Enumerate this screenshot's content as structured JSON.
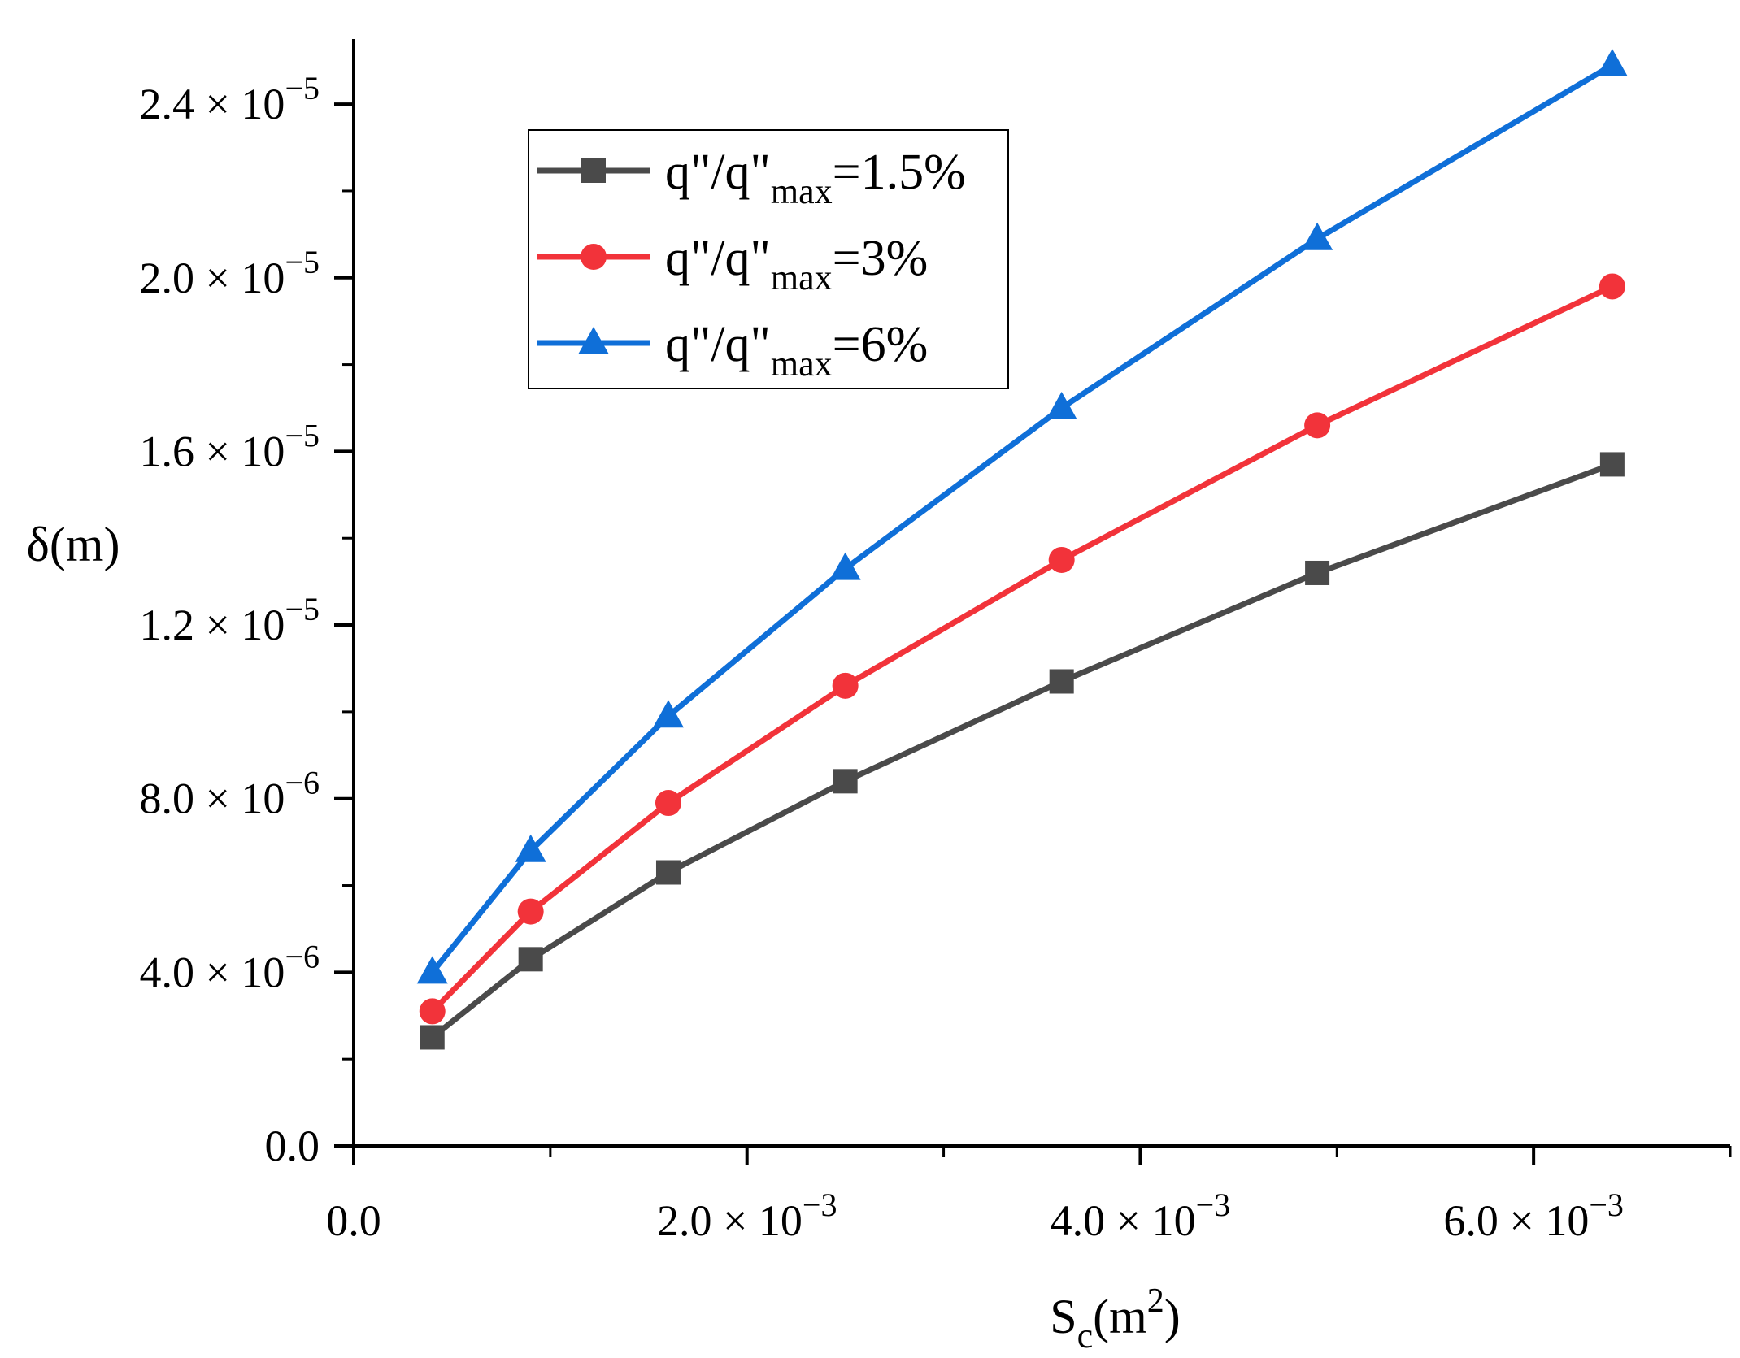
{
  "chart_data": {
    "type": "line",
    "title": "",
    "xlabel": {
      "base": "S",
      "sub": "c",
      "unit_open": "(m",
      "sup": "2",
      "unit_close": ")"
    },
    "ylabel": "δ(m)",
    "xlim": [
      0,
      0.007
    ],
    "ylim": [
      0,
      2.55e-05
    ],
    "x_ticks": [
      {
        "value": 0,
        "mantissa": "0.0",
        "exponent": ""
      },
      {
        "value": 0.002,
        "mantissa": "2.0 × 10",
        "exponent": "−3"
      },
      {
        "value": 0.004,
        "mantissa": "4.0 × 10",
        "exponent": "−3"
      },
      {
        "value": 0.006,
        "mantissa": "6.0 × 10",
        "exponent": "−3"
      }
    ],
    "x_minor_ticks": [
      0.001,
      0.003,
      0.005,
      0.007
    ],
    "y_ticks": [
      {
        "value": 0,
        "mantissa": "0.0",
        "exponent": ""
      },
      {
        "value": 4e-06,
        "mantissa": "4.0 × 10",
        "exponent": "−6"
      },
      {
        "value": 8e-06,
        "mantissa": "8.0 × 10",
        "exponent": "−6"
      },
      {
        "value": 1.2e-05,
        "mantissa": "1.2 × 10",
        "exponent": "−5"
      },
      {
        "value": 1.6e-05,
        "mantissa": "1.6 × 10",
        "exponent": "−5"
      },
      {
        "value": 2e-05,
        "mantissa": "2.0 × 10",
        "exponent": "−5"
      },
      {
        "value": 2.4e-05,
        "mantissa": "2.4 × 10",
        "exponent": "−5"
      }
    ],
    "y_minor_ticks": [
      2e-06,
      6e-06,
      1e-05,
      1.4e-05,
      1.8e-05,
      2.2e-05
    ],
    "grid": false,
    "legend_position": "top-left",
    "x": [
      0.0004,
      0.0009,
      0.0016,
      0.0025,
      0.0036,
      0.0049,
      0.0064
    ],
    "series": [
      {
        "name": "q\"/q\"max=1.5%",
        "label_prefix": "q\"/q\"",
        "label_sub": "max",
        "label_suffix": "=1.5%",
        "color": "#4a4a4a",
        "marker": "square",
        "values": [
          2.5e-06,
          4.3e-06,
          6.3e-06,
          8.4e-06,
          1.07e-05,
          1.32e-05,
          1.57e-05
        ]
      },
      {
        "name": "q\"/q\"max=3%",
        "label_prefix": "q\"/q\"",
        "label_sub": "max",
        "label_suffix": "=3%",
        "color": "#f2333a",
        "marker": "circle",
        "values": [
          3.1e-06,
          5.4e-06,
          7.9e-06,
          1.06e-05,
          1.35e-05,
          1.66e-05,
          1.98e-05
        ]
      },
      {
        "name": "q\"/q\"max=6%",
        "label_prefix": "q\"/q\"",
        "label_sub": "max",
        "label_suffix": "=6%",
        "color": "#0f6fd8",
        "marker": "triangle",
        "values": [
          4e-06,
          6.8e-06,
          9.9e-06,
          1.33e-05,
          1.7e-05,
          2.09e-05,
          2.49e-05
        ]
      }
    ]
  }
}
